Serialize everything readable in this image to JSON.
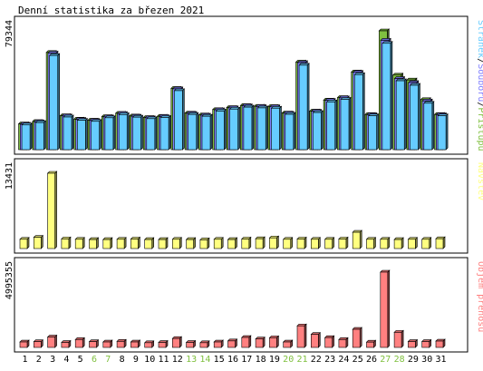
{
  "chart_data": {
    "type": "bar",
    "title": "Denní statistika za březen 2021",
    "categories": [
      "1",
      "2",
      "3",
      "4",
      "5",
      "6",
      "7",
      "8",
      "9",
      "10",
      "11",
      "12",
      "13",
      "14",
      "15",
      "16",
      "17",
      "18",
      "19",
      "20",
      "21",
      "22",
      "23",
      "24",
      "25",
      "26",
      "27",
      "28",
      "29",
      "30",
      "31"
    ],
    "weekend_days": [
      "6",
      "7",
      "13",
      "14",
      "20",
      "21",
      "27",
      "28"
    ],
    "colors": {
      "access": "#80c040",
      "files": "#8080ff",
      "pages": "#66ccff",
      "visits": "#ffff80",
      "volume": "#ff8080",
      "weekday_label": "#000000",
      "weekend_label": "#80c040"
    },
    "panels": [
      {
        "key": "hits",
        "max_label": "79344",
        "ymax": 79344,
        "legend": [
          {
            "label": "Přístupů",
            "color": "#80c040"
          },
          {
            "label": "Souborů",
            "color": "#8080ff"
          },
          {
            "label": "Stránek",
            "color": "#66ccff"
          }
        ],
        "legend_separator": "/",
        "series": [
          {
            "name": "Přístupů",
            "values": [
              17200,
              18800,
              64900,
              22700,
              20400,
              19700,
              22100,
              24300,
              22500,
              21500,
              22300,
              40900,
              24400,
              23200,
              26800,
              28100,
              29500,
              29000,
              28800,
              24500,
              58500,
              25800,
              33100,
              34800,
              51900,
              23500,
              79344,
              49800,
              46500,
              33400,
              23500
            ]
          },
          {
            "name": "Souborů",
            "values": [
              17000,
              18600,
              64500,
              22500,
              20200,
              19500,
              21900,
              24100,
              22300,
              21300,
              22100,
              40600,
              24200,
              23000,
              26600,
              27900,
              29300,
              28800,
              28600,
              24300,
              58100,
              25600,
              32900,
              34600,
              51600,
              23300,
              73000,
              47500,
              44800,
              32500,
              23300
            ]
          },
          {
            "name": "Stránek",
            "values": [
              16500,
              18100,
              62900,
              21800,
              19600,
              18900,
              21300,
              23400,
              21700,
              20700,
              21500,
              39400,
              23500,
              22300,
              25800,
              27100,
              28400,
              27900,
              27700,
              23600,
              56400,
              24800,
              31900,
              33600,
              50100,
              22600,
              71000,
              46000,
              43000,
              31000,
              22600
            ]
          }
        ]
      },
      {
        "key": "visits",
        "max_label": "13431",
        "ymax": 13431,
        "legend": [
          {
            "label": "Návštěv",
            "color": "#ffff80"
          }
        ],
        "series": [
          {
            "name": "Návštěv",
            "values": [
              1650,
              2000,
              13431,
              1720,
              1650,
              1600,
              1600,
              1650,
              1700,
              1600,
              1600,
              1650,
              1600,
              1550,
              1650,
              1600,
              1700,
              1750,
              1900,
              1650,
              1700,
              1650,
              1650,
              1700,
              2900,
              1650,
              1650,
              1600,
              1650,
              1650,
              1750
            ]
          }
        ]
      },
      {
        "key": "volume",
        "max_label": "4995355",
        "ymax": 4995355,
        "legend": [
          {
            "label": "Objem přenosu",
            "color": "#ff8080"
          }
        ],
        "series": [
          {
            "name": "Objem přenosu",
            "values": [
              360000,
              380000,
              690000,
              330000,
              520000,
              380000,
              360000,
              400000,
              360000,
              310000,
              330000,
              590000,
              330000,
              310000,
              360000,
              430000,
              660000,
              560000,
              640000,
              360000,
              1430000,
              860000,
              650000,
              520000,
              1200000,
              350000,
              4995355,
              1000000,
              390000,
              390000,
              420000
            ]
          }
        ]
      }
    ]
  }
}
